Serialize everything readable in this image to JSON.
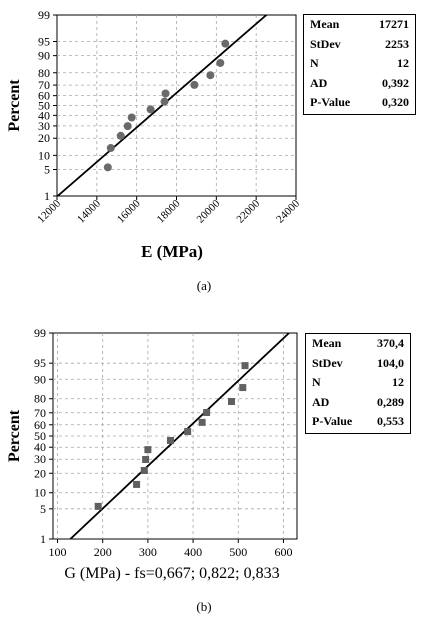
{
  "chart_data": [
    {
      "type": "scatter",
      "subtype": "normal-probability-plot",
      "xlabel": "E (MPa)",
      "ylabel": "Percent",
      "xlim": [
        12000,
        24000
      ],
      "xticks": [
        "12000",
        "14000",
        "16000",
        "18000",
        "20000",
        "22000",
        "24000"
      ],
      "xtick_rotation": "rotated",
      "yticks": [
        "1",
        "5",
        "10",
        "20",
        "30",
        "40",
        "50",
        "60",
        "70",
        "80",
        "90",
        "95",
        "99"
      ],
      "grid": true,
      "marker": "circle",
      "caption": "(a)",
      "points": [
        {
          "x": 14550,
          "y": 5.6
        },
        {
          "x": 14700,
          "y": 13.7
        },
        {
          "x": 15200,
          "y": 21.8
        },
        {
          "x": 15550,
          "y": 29.8
        },
        {
          "x": 15750,
          "y": 37.9
        },
        {
          "x": 16700,
          "y": 46.0
        },
        {
          "x": 17400,
          "y": 54.0
        },
        {
          "x": 17450,
          "y": 62.1
        },
        {
          "x": 18900,
          "y": 70.2
        },
        {
          "x": 19700,
          "y": 78.2
        },
        {
          "x": 20200,
          "y": 86.3
        },
        {
          "x": 20450,
          "y": 94.4
        }
      ],
      "fit_line": {
        "mean": 17271,
        "stdev": 2253
      },
      "stats": [
        {
          "label": "Mean",
          "value": "17271"
        },
        {
          "label": "StDev",
          "value": "2253"
        },
        {
          "label": "N",
          "value": "12"
        },
        {
          "label": "AD",
          "value": "0,392"
        },
        {
          "label": "P-Value",
          "value": "0,320"
        }
      ]
    },
    {
      "type": "scatter",
      "subtype": "normal-probability-plot",
      "xlabel": "G (MPa) - fs=0,667; 0,822; 0,833",
      "ylabel": "Percent",
      "xlim": [
        90,
        630
      ],
      "xticks": [
        "100",
        "200",
        "300",
        "400",
        "500",
        "600"
      ],
      "xtick_rotation": "none",
      "yticks": [
        "1",
        "5",
        "10",
        "20",
        "30",
        "40",
        "50",
        "60",
        "70",
        "80",
        "90",
        "95",
        "99"
      ],
      "grid": true,
      "marker": "square",
      "caption": "(b)",
      "points": [
        {
          "x": 190,
          "y": 5.6
        },
        {
          "x": 275,
          "y": 13.7
        },
        {
          "x": 292,
          "y": 21.8
        },
        {
          "x": 295,
          "y": 29.8
        },
        {
          "x": 300,
          "y": 37.9
        },
        {
          "x": 350,
          "y": 46.0
        },
        {
          "x": 388,
          "y": 54.0
        },
        {
          "x": 420,
          "y": 62.1
        },
        {
          "x": 430,
          "y": 70.2
        },
        {
          "x": 485,
          "y": 78.2
        },
        {
          "x": 510,
          "y": 86.3
        },
        {
          "x": 515,
          "y": 94.4
        }
      ],
      "fit_line": {
        "mean": 370.4,
        "stdev": 104.0
      },
      "stats": [
        {
          "label": "Mean",
          "value": "370,4"
        },
        {
          "label": "StDev",
          "value": "104,0"
        },
        {
          "label": "N",
          "value": "12"
        },
        {
          "label": "AD",
          "value": "0,289"
        },
        {
          "label": "P-Value",
          "value": "0,553"
        }
      ]
    }
  ]
}
